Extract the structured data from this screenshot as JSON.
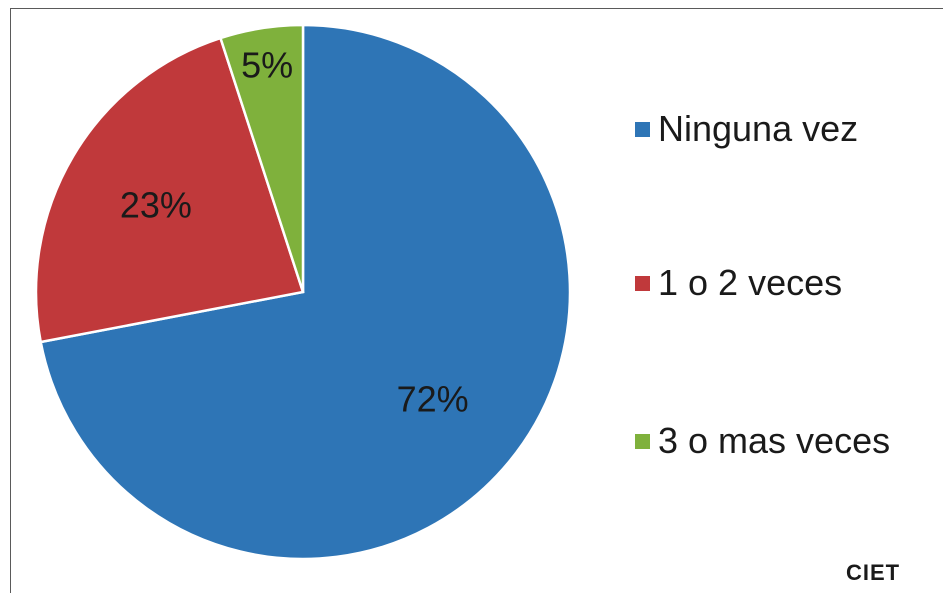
{
  "chart_data": {
    "type": "pie",
    "slices": [
      {
        "label": "Ninguna vez",
        "value": 72,
        "value_label": "72%",
        "color": "#2e75b6"
      },
      {
        "label": "1 o 2 veces",
        "value": 23,
        "value_label": "23%",
        "color": "#c0393b"
      },
      {
        "label": "3 o mas veces",
        "value": 5,
        "value_label": "5%",
        "color": "#7fb13c"
      }
    ],
    "legend_position": "right"
  },
  "source": "CIET"
}
